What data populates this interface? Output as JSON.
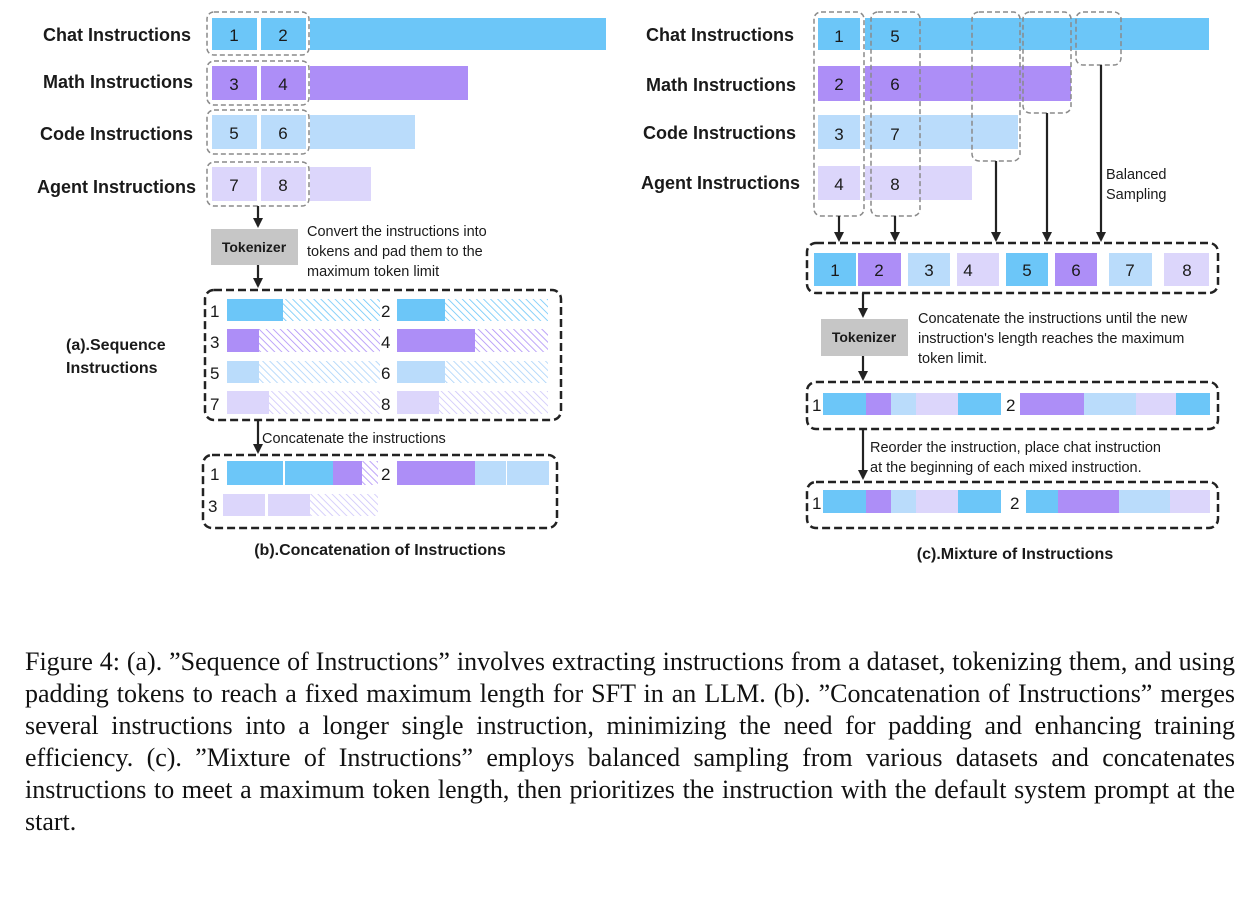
{
  "colors": {
    "chat": "#6cc6f8",
    "math": "#ad8ef7",
    "code": "#badcfb",
    "agent": "#dcd6fb",
    "tokenizer": "#c6c6c6",
    "dashed": "#8a8a8a",
    "solid_dashed": "#222222"
  },
  "categories": [
    "Chat Instructions",
    "Math Instructions",
    "Code Instructions",
    "Agent Instructions"
  ],
  "left": {
    "ids": [
      [
        "1",
        "2"
      ],
      [
        "3",
        "4"
      ],
      [
        "5",
        "6"
      ],
      [
        "7",
        "8"
      ]
    ],
    "tokenizer": "Tokenizer",
    "tokenizer_note": [
      "Convert the instructions into",
      "tokens and pad them to the",
      "maximum token limit"
    ],
    "seq_label": [
      "(a).Sequence",
      "Instructions"
    ],
    "seq_ids": [
      "1",
      "2",
      "3",
      "4",
      "5",
      "6",
      "7",
      "8"
    ],
    "concat_note": "Concatenate the instructions",
    "concat_ids": [
      "1",
      "2",
      "3"
    ],
    "concat_label": "(b).Concatenation of Instructions"
  },
  "right": {
    "ids": [
      [
        "1",
        "5"
      ],
      [
        "2",
        "6"
      ],
      [
        "3",
        "7"
      ],
      [
        "4",
        "8"
      ]
    ],
    "balanced": [
      "Balanced",
      "Sampling"
    ],
    "merged_ids": [
      "1",
      "2",
      "3",
      "4",
      "5",
      "6",
      "7",
      "8"
    ],
    "tokenizer": "Tokenizer",
    "tokenizer_note": [
      "Concatenate the instructions until the new",
      "instruction's length reaches the maximum",
      "token limit."
    ],
    "packed_ids": [
      "1",
      "2"
    ],
    "reorder_note": [
      "Reorder the instruction, place chat instruction",
      "at the beginning of each mixed instruction."
    ],
    "reordered_ids": [
      "1",
      "2"
    ],
    "mix_label": "(c).Mixture of Instructions"
  },
  "caption": "Figure 4: (a). ”Sequence of Instructions” involves extracting instructions from a dataset, tokenizing them, and using padding tokens to reach a fixed maximum length for SFT in an LLM. (b). ”Concatenation of Instructions” merges several instructions into a longer single instruction, minimizing the need for padding and enhancing training efficiency. (c). ”Mixture of Instructions” employs balanced sampling from various datasets and concatenates instructions to meet a maximum token length, then prioritizes the instruction with the default system prompt at the start."
}
